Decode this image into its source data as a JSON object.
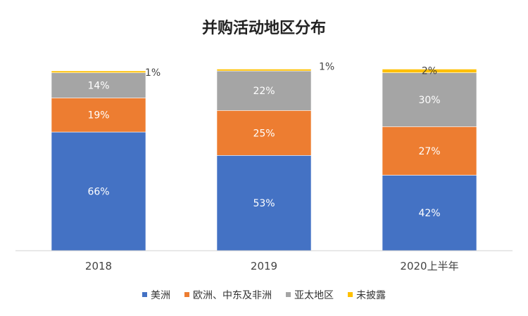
{
  "chart_data": {
    "type": "bar",
    "stacked": true,
    "title": "并购活动地区分布",
    "categories": [
      "2018",
      "2019",
      "2020上半年"
    ],
    "series": [
      {
        "name": "美洲",
        "values": [
          66,
          53,
          42
        ],
        "labels": [
          "66%",
          "53%",
          "42%"
        ],
        "color": "#4472C4"
      },
      {
        "name": "欧洲、中东及非洲",
        "values": [
          19,
          25,
          27
        ],
        "labels": [
          "19%",
          "25%",
          "27%"
        ],
        "color": "#ED7D31"
      },
      {
        "name": "亚太地区",
        "values": [
          14,
          22,
          30
        ],
        "labels": [
          "14%",
          "22%",
          "30%"
        ],
        "color": "#A5A5A5"
      },
      {
        "name": "未披露",
        "values": [
          1,
          1,
          2
        ],
        "labels": [
          "1%",
          "1%",
          "2%"
        ],
        "color": "#FFC000"
      }
    ],
    "ylim": [
      0,
      100
    ],
    "grid": false,
    "legend": "bottom"
  }
}
